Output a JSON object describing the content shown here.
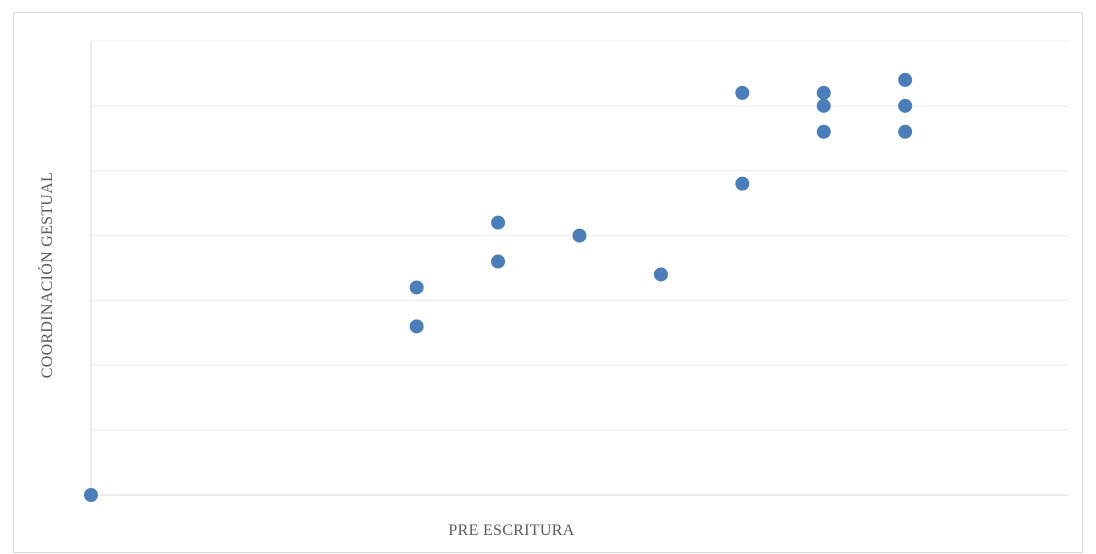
{
  "chart_data": {
    "type": "scatter",
    "title": "",
    "xlabel": "PRE ESCRITURA",
    "ylabel": "COORDINACIÓN GESTUAL",
    "xlim": [
      0,
      12
    ],
    "ylim": [
      0,
      35
    ],
    "y_gridlines": [
      5,
      10,
      15,
      20,
      25,
      30,
      35
    ],
    "grid": true,
    "tick_labels_shown": false,
    "legend": "none",
    "marker_color": "#4a7ebb",
    "series": [
      {
        "points": [
          {
            "x": 0,
            "y": 0
          },
          {
            "x": 4,
            "y": 13
          },
          {
            "x": 4,
            "y": 16
          },
          {
            "x": 5,
            "y": 18
          },
          {
            "x": 5,
            "y": 21
          },
          {
            "x": 6,
            "y": 20
          },
          {
            "x": 7,
            "y": 17
          },
          {
            "x": 8,
            "y": 24
          },
          {
            "x": 8,
            "y": 31
          },
          {
            "x": 9,
            "y": 28
          },
          {
            "x": 9,
            "y": 30
          },
          {
            "x": 9,
            "y": 31
          },
          {
            "x": 10,
            "y": 28
          },
          {
            "x": 10,
            "y": 30
          },
          {
            "x": 10,
            "y": 32
          }
        ]
      }
    ]
  }
}
